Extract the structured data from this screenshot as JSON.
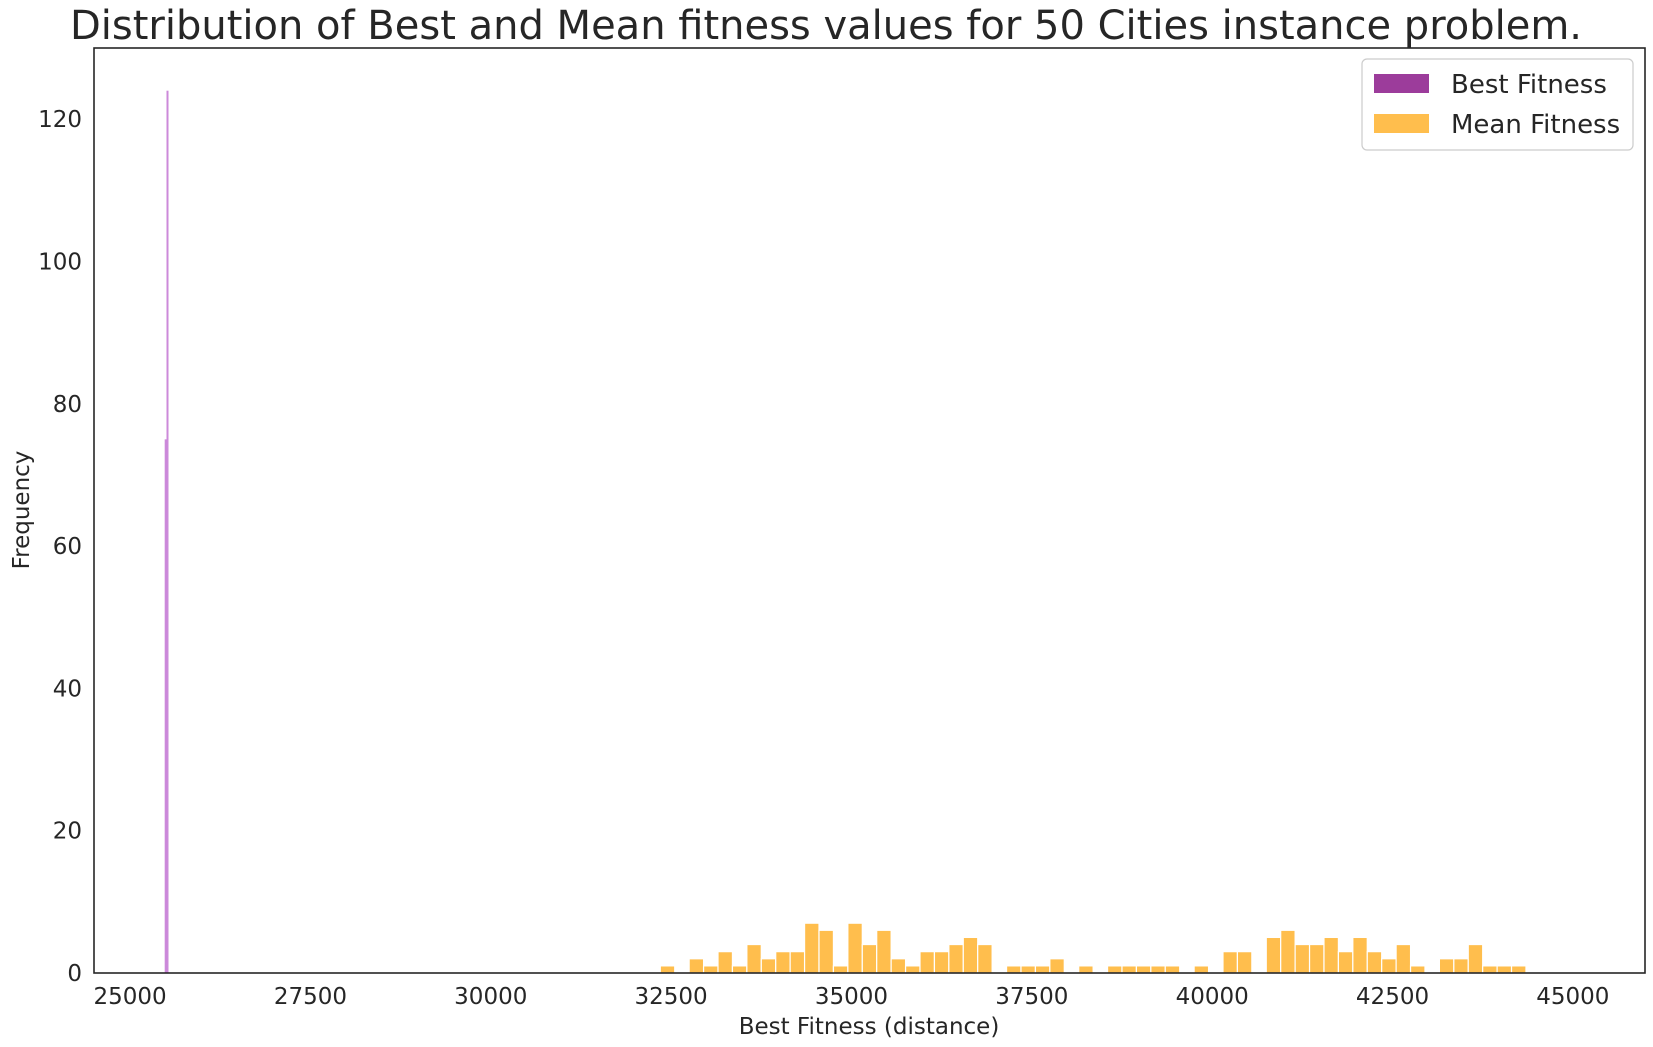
{
  "chart_data": {
    "type": "histogram",
    "title": "Distribution of Best and Mean fitness values for 50 Cities instance problem.",
    "xlabel": "Best Fitness (distance)",
    "ylabel": "Frequency",
    "xlim": [
      24500,
      46000
    ],
    "ylim": [
      0,
      130
    ],
    "xticks": [
      25000,
      27500,
      30000,
      32500,
      35000,
      37500,
      40000,
      42500,
      45000
    ],
    "yticks": [
      0,
      20,
      40,
      60,
      80,
      100,
      120
    ],
    "grid": false,
    "legend_position": "top-right",
    "series": [
      {
        "name": "Best Fitness",
        "color": "#8b1a89",
        "line_color": "#c77dd6",
        "bins": [
          {
            "x0": 25480,
            "x1": 25500,
            "count": 75
          },
          {
            "x0": 25505,
            "x1": 25525,
            "count": 124
          }
        ]
      },
      {
        "name": "Mean Fitness",
        "color": "#ffb32e",
        "bin_start": 32350,
        "bin_width": 200,
        "counts": [
          1,
          0,
          2,
          1,
          3,
          1,
          4,
          2,
          3,
          3,
          7,
          6,
          1,
          7,
          4,
          6,
          2,
          1,
          3,
          3,
          4,
          5,
          4,
          0,
          1,
          1,
          1,
          2,
          0,
          1,
          0,
          1,
          1,
          1,
          1,
          1,
          0,
          1,
          0,
          3,
          3,
          0,
          5,
          6,
          4,
          4,
          5,
          3,
          5,
          3,
          2,
          4,
          1,
          0,
          2,
          2,
          4,
          1,
          1,
          1
        ]
      }
    ]
  }
}
